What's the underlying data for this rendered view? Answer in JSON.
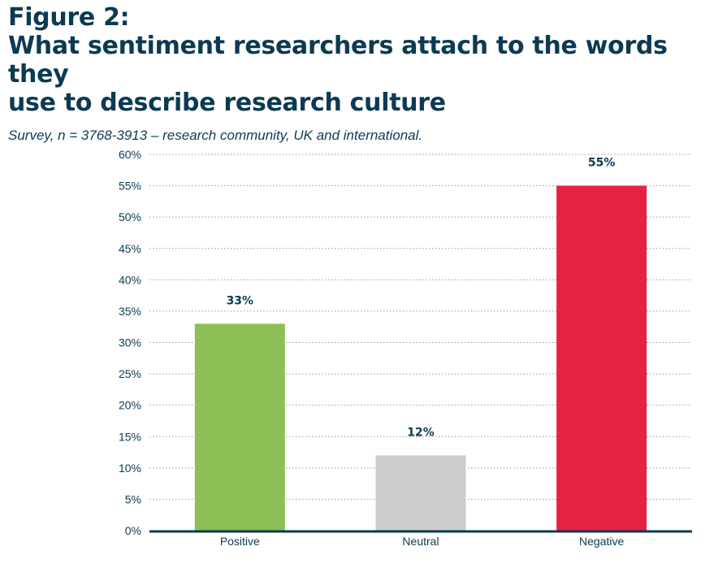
{
  "header": {
    "figure_label": "Figure 2:",
    "title_line1": "What sentiment researchers attach to the words they",
    "title_line2": "use to describe research culture",
    "subtitle": "Survey, n = 3768-3913 – research community, UK and international."
  },
  "chart_data": {
    "type": "bar",
    "title": "What sentiment researchers attach to the words they use to describe research culture",
    "subtitle": "Survey, n = 3768-3913 – research community, UK and international.",
    "categories": [
      "Positive",
      "Neutral",
      "Negative"
    ],
    "values": [
      33,
      12,
      55
    ],
    "data_labels": [
      "33%",
      "12%",
      "55%"
    ],
    "colors": [
      "#8ebf57",
      "#cccccc",
      "#e32244"
    ],
    "ylim": [
      0,
      60
    ],
    "yticks": [
      0,
      5,
      10,
      15,
      20,
      25,
      30,
      35,
      40,
      45,
      50,
      55,
      60
    ],
    "ytick_labels": [
      "0%",
      "5%",
      "10%",
      "15%",
      "20%",
      "25%",
      "30%",
      "35%",
      "40%",
      "45%",
      "50%",
      "55%",
      "60%"
    ],
    "grid": true,
    "legend": "none",
    "axis_color": "#0c3a52",
    "text_color": "#0c3a52"
  }
}
